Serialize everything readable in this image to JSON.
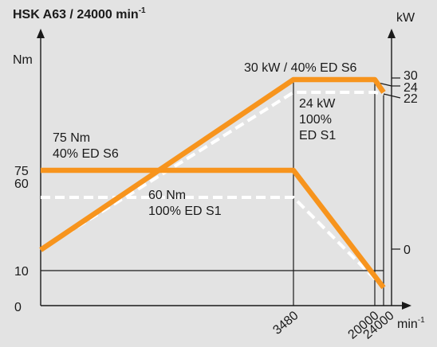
{
  "chart_data": {
    "type": "line",
    "title": {
      "main": "HSK A63 / 24000 min",
      "exponent": "-1"
    },
    "y_left": {
      "label": "Nm",
      "ticks": [
        "0",
        "10",
        "60",
        "75"
      ]
    },
    "y_right": {
      "label": "kW",
      "ticks": [
        "0",
        "22",
        "24",
        "30"
      ]
    },
    "x_axis": {
      "label": "min",
      "exponent": "-1",
      "ticks": [
        "3480",
        "20000",
        "24000"
      ]
    },
    "series": [
      {
        "kind": "torque",
        "duty": "S6",
        "axis": "left",
        "style": "solid",
        "color": "#f7941d",
        "points": [
          [
            0,
            75
          ],
          [
            3480,
            75
          ],
          [
            24000,
            10
          ]
        ]
      },
      {
        "kind": "torque",
        "duty": "S1",
        "axis": "left",
        "style": "dashed",
        "color": "#ffffff",
        "points": [
          [
            0,
            60
          ],
          [
            3480,
            60
          ],
          [
            24000,
            10
          ]
        ]
      },
      {
        "kind": "power",
        "duty": "S6",
        "axis": "right",
        "style": "solid",
        "color": "#f7941d",
        "points": [
          [
            0,
            8
          ],
          [
            3480,
            30
          ],
          [
            20000,
            30
          ],
          [
            24000,
            24
          ]
        ]
      },
      {
        "kind": "power",
        "duty": "S1",
        "axis": "right",
        "style": "dashed",
        "color": "#ffffff",
        "points": [
          [
            0,
            8
          ],
          [
            3480,
            24
          ],
          [
            20000,
            24
          ],
          [
            24000,
            22
          ]
        ]
      }
    ],
    "annotations": [
      {
        "id": "power_s6",
        "lines": [
          "30 kW / 40% ED S6"
        ]
      },
      {
        "id": "power_s1",
        "lines": [
          "24 kW",
          "100%",
          "ED S1"
        ]
      },
      {
        "id": "torque_s6",
        "lines": [
          "75 Nm",
          "40% ED S6"
        ]
      },
      {
        "id": "torque_s1",
        "lines": [
          "60 Nm",
          "100% ED S1"
        ]
      }
    ],
    "colors": {
      "background": "#e3e3e3",
      "axes": "#1a1a1a",
      "s6": "#f7941d",
      "s1": "#ffffff"
    },
    "grid": false
  }
}
